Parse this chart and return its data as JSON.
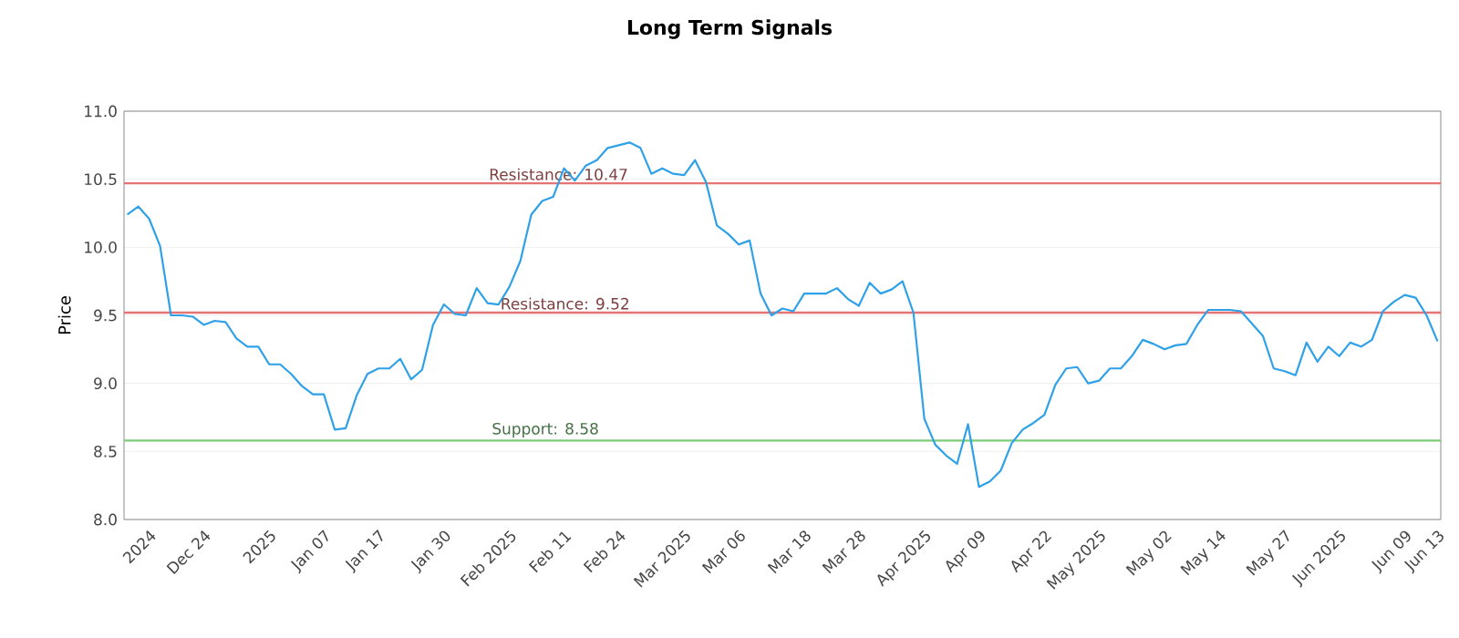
{
  "chart_data": {
    "type": "line",
    "title": "Long Term Signals",
    "ylabel": "Price",
    "categories": [
      null,
      null,
      "2024",
      null,
      null,
      null,
      null,
      "Dec 24",
      null,
      null,
      null,
      null,
      null,
      "2025",
      null,
      null,
      null,
      null,
      "Jan 07",
      null,
      null,
      null,
      null,
      "Jan 17",
      null,
      null,
      null,
      null,
      null,
      "Jan 30",
      null,
      null,
      null,
      null,
      null,
      "Feb 2025",
      null,
      null,
      null,
      null,
      "Feb 11",
      null,
      null,
      null,
      null,
      "Feb 24",
      null,
      null,
      null,
      null,
      null,
      "Mar 2025",
      null,
      null,
      null,
      null,
      "Mar 06",
      null,
      null,
      null,
      null,
      null,
      "Mar 18",
      null,
      null,
      null,
      null,
      "Mar 28",
      null,
      null,
      null,
      null,
      null,
      "Apr 2025",
      null,
      null,
      null,
      null,
      "Apr 09",
      null,
      null,
      null,
      null,
      null,
      "Apr 22",
      null,
      null,
      null,
      null,
      "May 2025",
      null,
      null,
      null,
      null,
      null,
      "May 02",
      null,
      null,
      null,
      null,
      "May 14",
      null,
      null,
      null,
      null,
      null,
      "May 27",
      null,
      null,
      null,
      null,
      "Jun 2025",
      null,
      null,
      null,
      null,
      null,
      "Jun 09",
      null,
      null,
      "Jun 13"
    ],
    "series": [
      {
        "color": "#2ea1e8",
        "values": [
          10.24,
          10.3,
          10.21,
          10.01,
          9.5,
          9.5,
          9.49,
          9.43,
          9.46,
          9.45,
          9.33,
          9.27,
          9.27,
          9.14,
          9.14,
          9.07,
          8.98,
          8.92,
          8.92,
          8.66,
          8.67,
          8.91,
          9.07,
          9.11,
          9.11,
          9.18,
          9.03,
          9.1,
          9.43,
          9.58,
          9.51,
          9.5,
          9.7,
          9.59,
          9.58,
          9.71,
          9.9,
          10.24,
          10.34,
          10.37,
          10.58,
          10.49,
          10.6,
          10.64,
          10.73,
          10.75,
          10.77,
          10.73,
          10.54,
          10.58,
          10.54,
          10.53,
          10.64,
          10.48,
          10.16,
          10.1,
          10.02,
          10.05,
          9.66,
          9.5,
          9.55,
          9.53,
          9.66,
          9.66,
          9.66,
          9.7,
          9.62,
          9.57,
          9.74,
          9.66,
          9.69,
          9.75,
          9.52,
          8.74,
          8.55,
          8.47,
          8.41,
          8.7,
          8.24,
          8.28,
          8.36,
          8.56,
          8.66,
          8.71,
          8.77,
          8.99,
          9.11,
          9.12,
          9.0,
          9.02,
          9.11,
          9.11,
          9.2,
          9.32,
          9.29,
          9.25,
          9.28,
          9.29,
          9.43,
          9.54,
          9.54,
          9.54,
          9.53,
          9.44,
          9.35,
          9.11,
          9.09,
          9.06,
          9.3,
          9.16,
          9.27,
          9.2,
          9.3,
          9.27,
          9.32,
          9.53,
          9.6,
          9.65,
          9.63,
          9.5,
          9.31
        ]
      }
    ],
    "ylim": [
      8,
      11
    ],
    "yticks": [
      {
        "value": 8,
        "label": "8.0"
      },
      {
        "value": 8.5,
        "label": "8.5"
      },
      {
        "value": 9,
        "label": "9.0"
      },
      {
        "value": 9.5,
        "label": "9.5"
      },
      {
        "value": 10,
        "label": "10.0"
      },
      {
        "value": 10.5,
        "label": "10.5"
      },
      {
        "value": 11,
        "label": "11.0"
      }
    ],
    "grid": "y",
    "marker": "none",
    "line_style": "solid",
    "ref_lines": [
      {
        "axis": "y",
        "value": 10.47,
        "label": "Resistance: 10.47",
        "color": "#e57373"
      },
      {
        "axis": "y",
        "value": 9.52,
        "label": "Resistance: 9.52",
        "color": "#e57373"
      },
      {
        "axis": "y",
        "value": 8.58,
        "label": "Support: 8.58",
        "color": "#7ccc7c"
      }
    ]
  }
}
